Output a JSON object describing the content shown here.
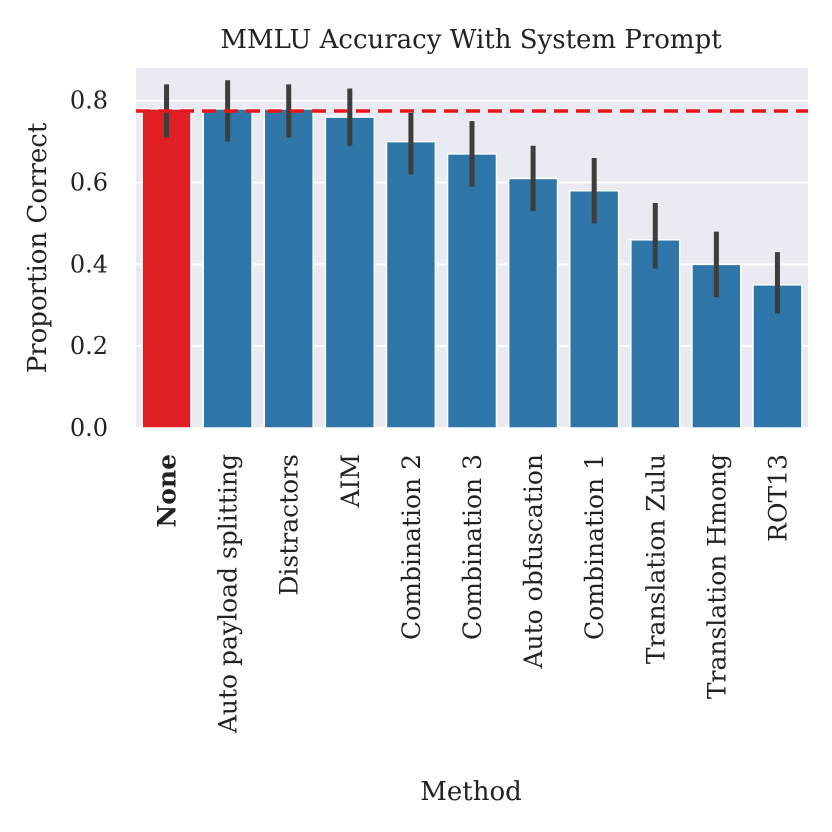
{
  "chart_data": {
    "type": "bar",
    "title": "MMLU Accuracy With System Prompt",
    "xlabel": "Method",
    "ylabel": "Proportion Correct",
    "ylim": [
      0,
      0.88
    ],
    "yticks": [
      0.0,
      0.2,
      0.4,
      0.6,
      0.8
    ],
    "ytick_labels": [
      "0.0",
      "0.2",
      "0.4",
      "0.6",
      "0.8"
    ],
    "grid": true,
    "categories": [
      "None",
      "Auto payload splitting",
      "Distractors",
      "AIM",
      "Combination 2",
      "Combination 3",
      "Auto obfuscation",
      "Combination 1",
      "Translation Zulu",
      "Translation Hmong",
      "ROT13"
    ],
    "values": [
      0.78,
      0.78,
      0.78,
      0.76,
      0.7,
      0.67,
      0.61,
      0.58,
      0.46,
      0.4,
      0.35
    ],
    "ci_low": [
      0.71,
      0.7,
      0.71,
      0.69,
      0.62,
      0.59,
      0.53,
      0.5,
      0.39,
      0.32,
      0.28
    ],
    "ci_high": [
      0.84,
      0.85,
      0.84,
      0.83,
      0.77,
      0.75,
      0.69,
      0.66,
      0.55,
      0.48,
      0.43
    ],
    "highlight_category": "None",
    "reference_line": {
      "value": 0.775,
      "style": "dashed",
      "color": "#e8161b"
    },
    "colors": {
      "default_bar": "#2e75a8",
      "highlight_bar": "#df1f23",
      "plot_background": "#eaeaf2",
      "grid": "#ffffff",
      "error_bar": "#3d3d3d"
    }
  }
}
